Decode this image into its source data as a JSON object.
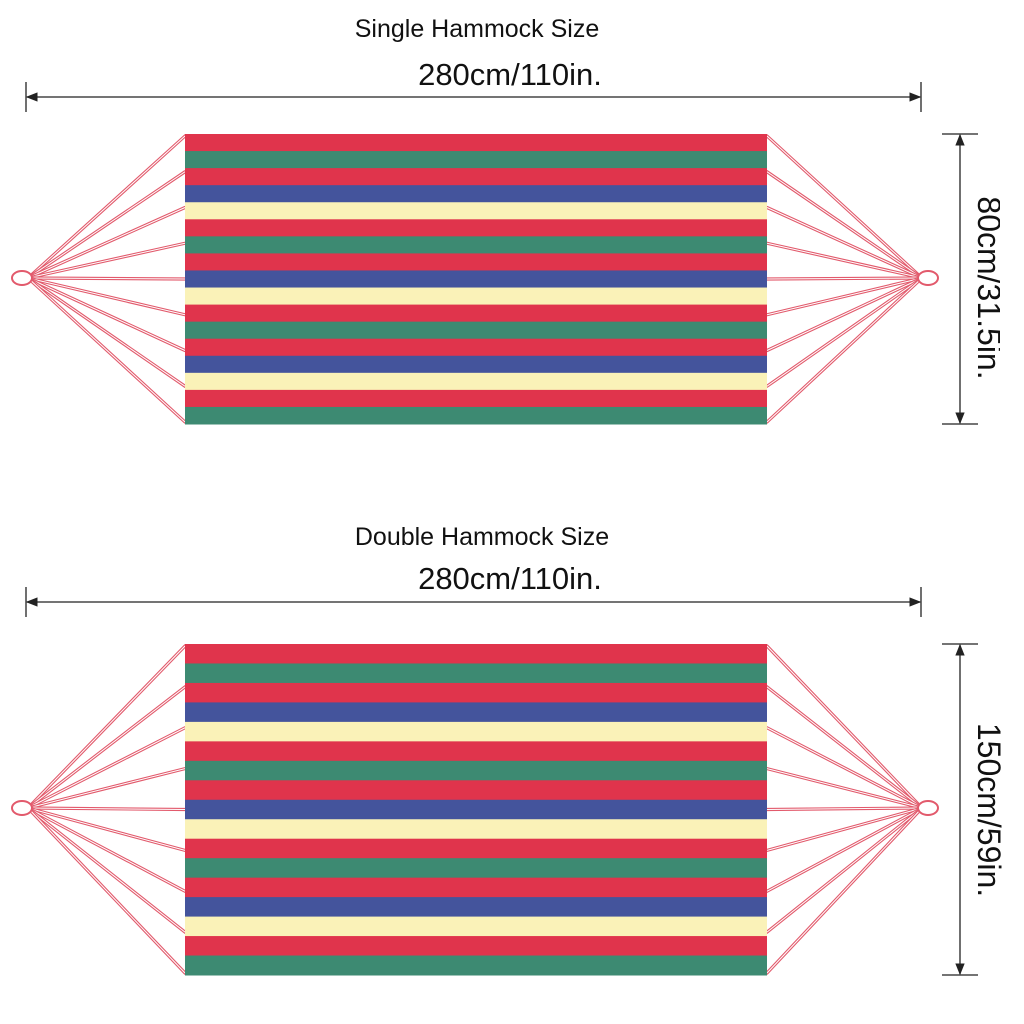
{
  "sections": [
    {
      "title": "Single Hammock Size",
      "length_label": "280cm/110in.",
      "width_label": "80cm/31.5in."
    },
    {
      "title": "Double Hammock Size",
      "length_label": "280cm/110in.",
      "width_label": "150cm/59in."
    }
  ]
}
